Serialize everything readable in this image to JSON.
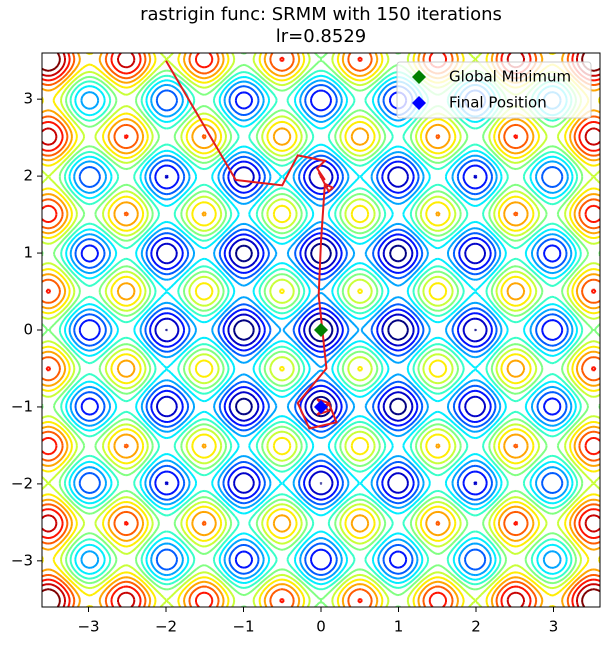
{
  "chart_data": {
    "type": "contour",
    "title": "rastrigin func: SRMM with 150 iterations",
    "subtitle": "lr=0.8529",
    "function": "rastrigin",
    "levels": 15,
    "xlim": [
      -3.6,
      3.6
    ],
    "ylim": [
      -3.6,
      3.6
    ],
    "xticks": [
      {
        "value": -3,
        "label": "−3"
      },
      {
        "value": -2,
        "label": "−2"
      },
      {
        "value": -1,
        "label": "−1"
      },
      0,
      1,
      2,
      3
    ],
    "yticks": [
      {
        "value": -3,
        "label": "−3"
      },
      {
        "value": -2,
        "label": "−2"
      },
      {
        "value": -1,
        "label": "−1"
      },
      0,
      1,
      2,
      3
    ],
    "series": [
      {
        "color": "#e41a1c",
        "x": [
          -2.0,
          -1.1,
          -0.5,
          -0.3,
          0.05,
          -0.05,
          0.05,
          -0.03,
          0.1,
          0.15,
          0.05,
          0.0,
          -0.03,
          0.07,
          -0.3,
          -0.15,
          0.2,
          0.1,
          -0.05,
          0.1,
          -0.05,
          0.12,
          0.0
        ],
        "y": [
          3.5,
          1.95,
          1.88,
          2.27,
          2.2,
          2.1,
          1.95,
          2.05,
          1.8,
          1.85,
          1.9,
          1.15,
          0.45,
          -0.5,
          -0.95,
          -1.28,
          -1.2,
          -0.95,
          -0.9,
          -1.05,
          -1.1,
          -0.95,
          -1.0
        ]
      }
    ],
    "points": [
      {
        "name": "Global Minimum",
        "color": "#008000",
        "x": 0,
        "y": 0
      },
      {
        "name": "Final Position",
        "color": "#0000ff",
        "x": 0.0,
        "y": -1.0
      }
    ],
    "legend": "upper right"
  }
}
